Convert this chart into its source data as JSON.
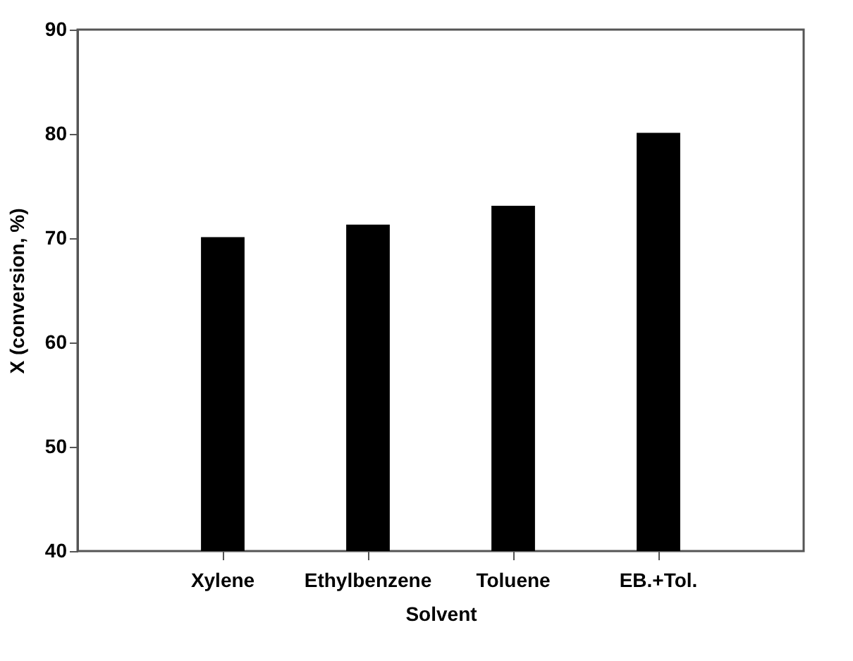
{
  "chart_data": {
    "type": "bar",
    "xlabel": "Solvent",
    "ylabel": "X (conversion, %)",
    "categories": [
      "Xylene",
      "Ethylbenzene",
      "Toluene",
      "EB.+Tol."
    ],
    "values": [
      70.1,
      71.3,
      73.1,
      80.1
    ],
    "color": "#000000",
    "ylim": [
      40,
      90
    ],
    "yticks": [
      40,
      50,
      60,
      70,
      80,
      90
    ],
    "grid": false
  }
}
